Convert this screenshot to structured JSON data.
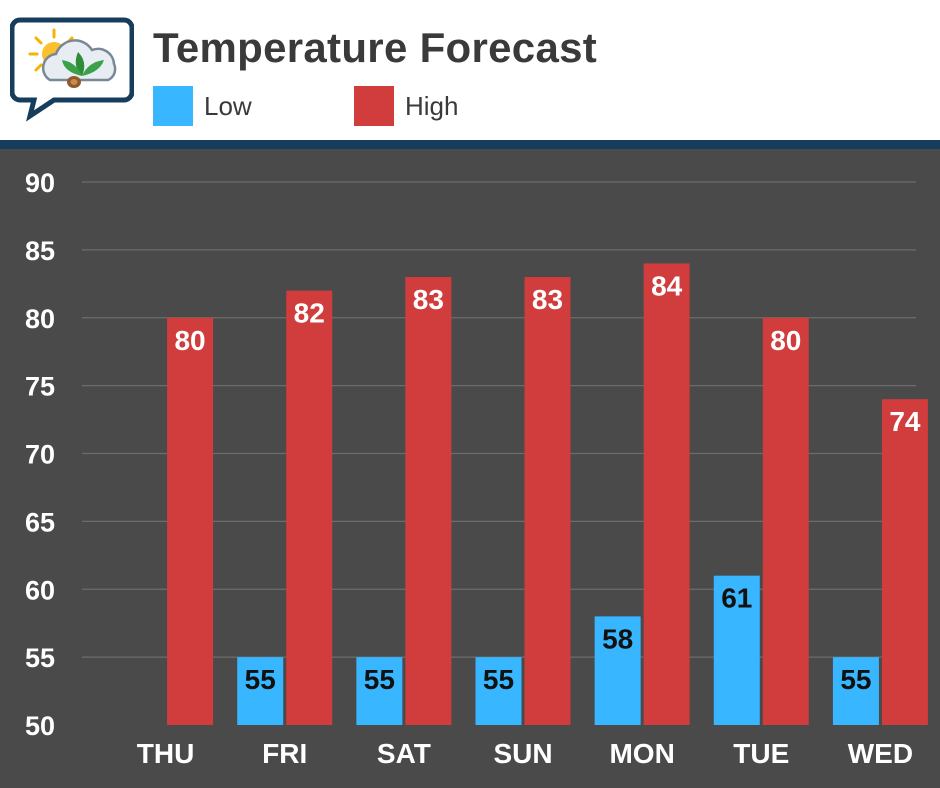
{
  "header": {
    "title": "Temperature Forecast",
    "logo_icon": "weather-chat-logo-icon"
  },
  "legend": [
    {
      "label": "Low",
      "color": "#38b6ff"
    },
    {
      "label": "High",
      "color": "#d13c3c"
    }
  ],
  "colors": {
    "background": "#4a4a4a",
    "divider": "#173d5c",
    "grid": "#6c6c6c",
    "low_label": "#111111",
    "high_label": "#ffffff"
  },
  "chart_data": {
    "type": "bar",
    "title": "Temperature Forecast",
    "xlabel": "",
    "ylabel": "",
    "categories": [
      "THU",
      "FRI",
      "SAT",
      "SUN",
      "MON",
      "TUE",
      "WED"
    ],
    "series": [
      {
        "name": "Low",
        "values": [
          null,
          55,
          55,
          55,
          58,
          61,
          55
        ]
      },
      {
        "name": "High",
        "values": [
          80,
          82,
          83,
          83,
          84,
          80,
          74
        ]
      }
    ],
    "ylim": [
      50,
      90
    ],
    "yticks": [
      50,
      55,
      60,
      65,
      70,
      75,
      80,
      85,
      90
    ],
    "grid": true,
    "legend_position": "top-left"
  }
}
